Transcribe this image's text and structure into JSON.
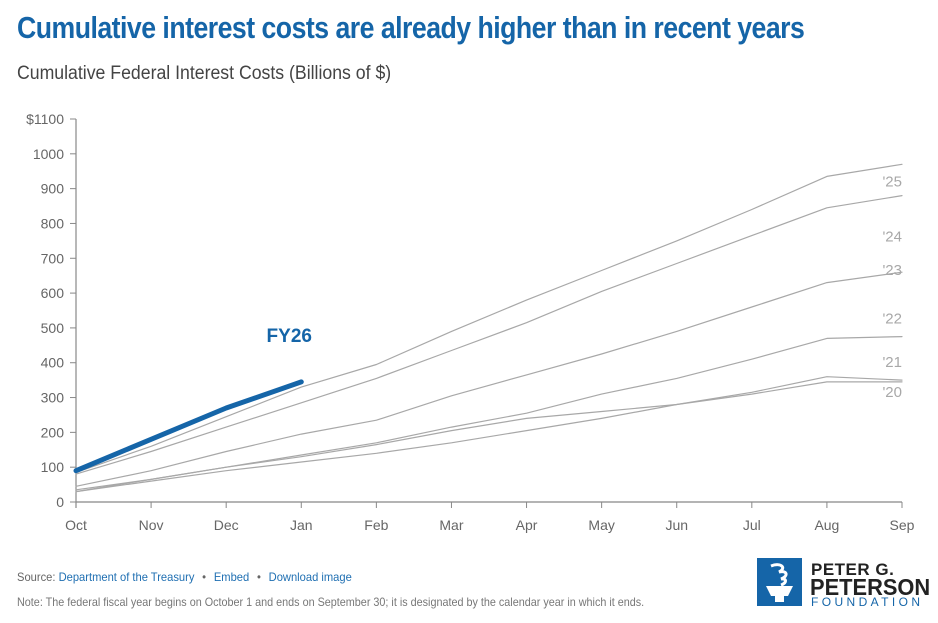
{
  "header": {
    "title": "Cumulative interest costs are already higher than in recent years",
    "subtitle": "Cumulative Federal Interest Costs (Billions of $)"
  },
  "footer": {
    "source_label": "Source:",
    "source_link": "Department of the Treasury",
    "separator": "•",
    "embed_link": "Embed",
    "download_link": "Download image",
    "note": "Note: The federal fiscal year begins on October 1 and ends on September 30; it is designated by the calendar year in which it ends."
  },
  "logo": {
    "line1": "PETER G.",
    "line2": "PETERSON",
    "line3": "FOUNDATION"
  },
  "colors": {
    "highlight": "#1565a8",
    "history": "#a8a8a8",
    "axis": "#888888",
    "tick_label": "#666666"
  },
  "chart_data": {
    "type": "line",
    "title": "Cumulative Federal Interest Costs (Billions of $)",
    "xlabel": "",
    "ylabel": "",
    "x": [
      "Oct",
      "Nov",
      "Dec",
      "Jan",
      "Feb",
      "Mar",
      "Apr",
      "May",
      "Jun",
      "Jul",
      "Aug",
      "Sep"
    ],
    "ylim": [
      0,
      1100
    ],
    "yticks": [
      0,
      100,
      200,
      300,
      400,
      500,
      600,
      700,
      800,
      900,
      1000,
      1100
    ],
    "ytick_labels": [
      "0",
      "100",
      "200",
      "300",
      "400",
      "500",
      "600",
      "700",
      "800",
      "900",
      "1000",
      "$1100"
    ],
    "grid": false,
    "legend": "inline-right",
    "series": [
      {
        "name": "'25",
        "highlight": false,
        "values": [
          85,
          160,
          245,
          330,
          395,
          490,
          580,
          665,
          750,
          840,
          935,
          970
        ]
      },
      {
        "name": "'24",
        "highlight": false,
        "values": [
          80,
          145,
          215,
          285,
          355,
          435,
          515,
          605,
          685,
          765,
          845,
          880
        ]
      },
      {
        "name": "'23",
        "highlight": false,
        "values": [
          45,
          90,
          145,
          195,
          235,
          305,
          365,
          425,
          490,
          560,
          630,
          660
        ]
      },
      {
        "name": "'22",
        "highlight": false,
        "values": [
          35,
          65,
          100,
          135,
          170,
          215,
          255,
          310,
          355,
          410,
          470,
          475
        ]
      },
      {
        "name": "'21",
        "highlight": false,
        "values": [
          30,
          65,
          100,
          130,
          165,
          205,
          240,
          260,
          280,
          315,
          360,
          350
        ]
      },
      {
        "name": "'20",
        "highlight": false,
        "values": [
          30,
          60,
          90,
          115,
          140,
          170,
          205,
          240,
          280,
          310,
          345,
          345
        ]
      },
      {
        "name": "FY26",
        "highlight": true,
        "values": [
          90,
          180,
          270,
          345
        ]
      }
    ],
    "annotations": [
      {
        "text": "FY26",
        "series": "FY26"
      }
    ]
  }
}
